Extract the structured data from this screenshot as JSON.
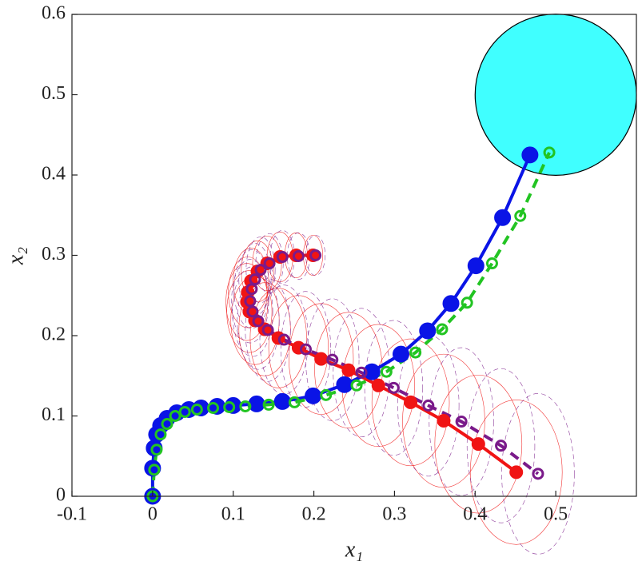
{
  "chart_data": {
    "type": "line",
    "xlabel": "x₁",
    "ylabel": "x₂",
    "xlim": [
      -0.1,
      0.6
    ],
    "ylim": [
      0,
      0.6
    ],
    "xticks": [
      -0.1,
      0,
      0.1,
      0.2,
      0.3,
      0.4,
      0.5
    ],
    "yticks": [
      0,
      0.1,
      0.2,
      0.3,
      0.4,
      0.5,
      0.6
    ],
    "target": {
      "center": [
        0.5,
        0.5
      ],
      "radius": 0.1,
      "color": "#40ffff"
    },
    "series": [
      {
        "color": "#0a14e6",
        "line_style": "solid",
        "marker": "filled",
        "x": [
          0,
          0,
          0.002,
          0.005,
          0.01,
          0.018,
          0.03,
          0.045,
          0.06,
          0.08,
          0.1,
          0.129,
          0.161,
          0.199,
          0.238,
          0.272,
          0.308,
          0.341,
          0.37,
          0.401,
          0.434,
          0.468
        ],
        "values": [
          0,
          0.035,
          0.06,
          0.077,
          0.088,
          0.097,
          0.104,
          0.108,
          0.11,
          0.112,
          0.113,
          0.115,
          0.118,
          0.125,
          0.139,
          0.155,
          0.177,
          0.206,
          0.24,
          0.287,
          0.347,
          0.425
        ]
      },
      {
        "color": "#22c422",
        "line_style": "dashed",
        "marker": "open",
        "x": [
          0,
          0.002,
          0.005,
          0.01,
          0.018,
          0.028,
          0.04,
          0.055,
          0.075,
          0.095,
          0.115,
          0.144,
          0.176,
          0.215,
          0.253,
          0.29,
          0.326,
          0.359,
          0.39,
          0.421,
          0.456,
          0.492
        ],
        "values": [
          0,
          0.033,
          0.058,
          0.077,
          0.09,
          0.1,
          0.105,
          0.108,
          0.11,
          0.111,
          0.112,
          0.114,
          0.117,
          0.126,
          0.138,
          0.155,
          0.179,
          0.208,
          0.241,
          0.29,
          0.349,
          0.428
        ]
      },
      {
        "color": "#f01414",
        "line_style": "solid",
        "marker": "filled",
        "x": [
          0.199,
          0.178,
          0.158,
          0.142,
          0.13,
          0.122,
          0.118,
          0.117,
          0.12,
          0.127,
          0.139,
          0.156,
          0.181,
          0.209,
          0.243,
          0.28,
          0.32,
          0.361,
          0.404,
          0.451
        ],
        "values": [
          0.3,
          0.3,
          0.298,
          0.29,
          0.28,
          0.268,
          0.254,
          0.242,
          0.23,
          0.219,
          0.208,
          0.197,
          0.185,
          0.171,
          0.157,
          0.138,
          0.117,
          0.094,
          0.065,
          0.03
        ],
        "ellipse_rx": [
          0.012,
          0.014,
          0.016,
          0.018,
          0.02,
          0.022,
          0.024,
          0.026,
          0.028,
          0.03,
          0.032,
          0.035,
          0.037,
          0.04,
          0.042,
          0.045,
          0.048,
          0.051,
          0.054,
          0.057
        ],
        "ellipse_ry": [
          0.025,
          0.028,
          0.031,
          0.034,
          0.038,
          0.041,
          0.044,
          0.048,
          0.051,
          0.055,
          0.058,
          0.062,
          0.065,
          0.069,
          0.072,
          0.076,
          0.079,
          0.083,
          0.086,
          0.09
        ]
      },
      {
        "color": "#7a1a8a",
        "line_style": "dashed",
        "marker": "open",
        "x": [
          0.202,
          0.181,
          0.161,
          0.145,
          0.134,
          0.127,
          0.123,
          0.121,
          0.124,
          0.131,
          0.143,
          0.163,
          0.19,
          0.223,
          0.259,
          0.299,
          0.342,
          0.383,
          0.432,
          0.478
        ],
        "values": [
          0.3,
          0.299,
          0.298,
          0.29,
          0.282,
          0.27,
          0.258,
          0.243,
          0.23,
          0.218,
          0.207,
          0.195,
          0.183,
          0.17,
          0.154,
          0.135,
          0.113,
          0.093,
          0.063,
          0.028
        ],
        "ellipse_rx": [
          0.012,
          0.014,
          0.015,
          0.017,
          0.018,
          0.02,
          0.022,
          0.023,
          0.025,
          0.026,
          0.028,
          0.03,
          0.031,
          0.033,
          0.035,
          0.036,
          0.038,
          0.04,
          0.042,
          0.045
        ],
        "ellipse_ry": [
          0.025,
          0.029,
          0.033,
          0.037,
          0.041,
          0.045,
          0.049,
          0.052,
          0.056,
          0.06,
          0.064,
          0.068,
          0.072,
          0.076,
          0.08,
          0.084,
          0.088,
          0.092,
          0.096,
          0.1
        ]
      }
    ]
  }
}
